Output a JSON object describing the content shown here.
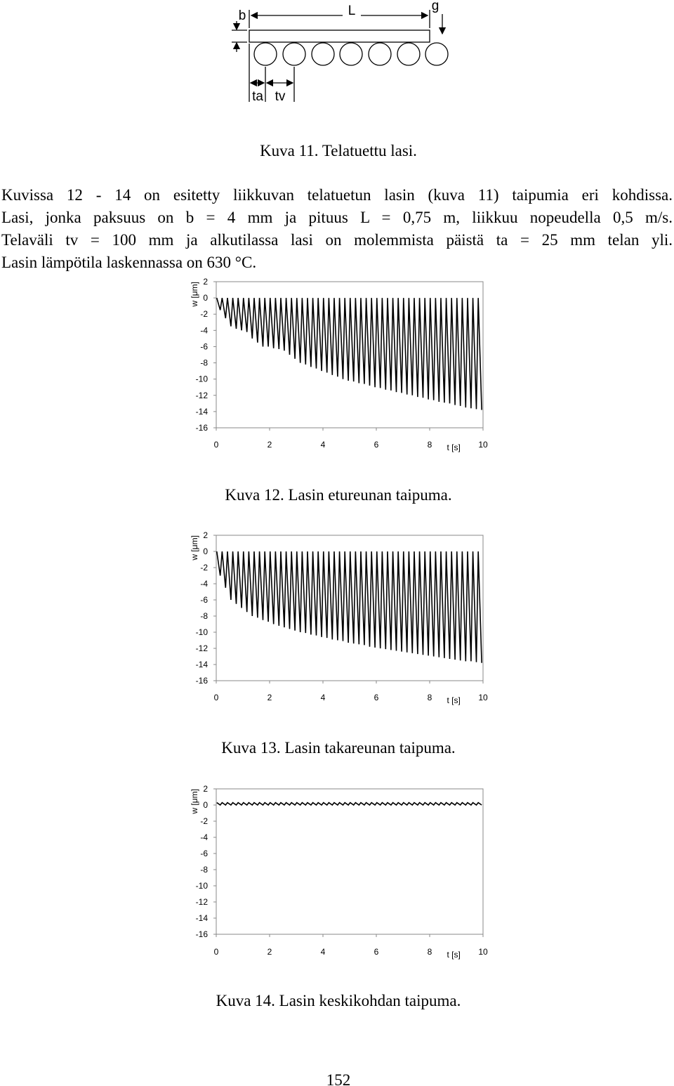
{
  "figure11": {
    "labels": {
      "b": "b",
      "L": "L",
      "g": "g",
      "ta": "ta",
      "tv": "tv"
    },
    "caption": "Kuva 11. Telatuettu lasi."
  },
  "paragraph": [
    "Kuvissa 12 - 14 on esitetty liikkuvan telatuetun lasin (kuva 11) taipumia eri kohdissa.",
    "Lasi, jonka paksuus on b = 4 mm ja pituus L = 0,75 m, liikkuu nopeudella 0,5 m/s.",
    "Telaväli tv = 100 mm ja alkutilassa lasi on molemmista päistä ta = 25 mm telan yli.",
    "Lasin lämpötila laskennassa on 630 °C."
  ],
  "chart_data": [
    {
      "type": "line",
      "caption": "Kuva 12. Lasin etureunan taipuma.",
      "ylabel": "w [μm]",
      "xlabel": "t [s]",
      "xlim": [
        0,
        10
      ],
      "xticks": [
        0,
        2,
        4,
        6,
        8,
        10
      ],
      "ylim": [
        -16,
        2
      ],
      "yticks": [
        2,
        0,
        -2,
        -4,
        -6,
        -8,
        -10,
        -12,
        -14,
        -16
      ],
      "grid": false,
      "x": [
        0.02,
        0.15,
        0.22,
        0.35,
        0.42,
        0.55,
        0.62,
        0.75,
        0.82,
        0.95,
        1.02,
        1.15,
        1.22,
        1.35,
        1.42,
        1.55,
        1.62,
        1.75,
        1.82,
        1.95,
        2.02,
        2.15,
        2.22,
        2.35,
        2.42,
        2.55,
        2.62,
        2.75,
        2.82,
        2.95,
        3.02,
        3.15,
        3.22,
        3.35,
        3.42,
        3.55,
        3.62,
        3.75,
        3.82,
        3.95,
        4.02,
        4.15,
        4.22,
        4.35,
        4.42,
        4.55,
        4.62,
        4.75,
        4.82,
        4.95,
        5.02,
        5.15,
        5.22,
        5.35,
        5.42,
        5.55,
        5.62,
        5.75,
        5.82,
        5.95,
        6.02,
        6.15,
        6.22,
        6.35,
        6.42,
        6.55,
        6.62,
        6.75,
        6.82,
        6.95,
        7.02,
        7.15,
        7.22,
        7.35,
        7.42,
        7.55,
        7.62,
        7.75,
        7.82,
        7.95,
        8.02,
        8.15,
        8.22,
        8.35,
        8.42,
        8.55,
        8.62,
        8.75,
        8.82,
        8.95,
        9.02,
        9.15,
        9.22,
        9.35,
        9.42,
        9.55,
        9.62,
        9.75,
        9.82,
        9.95
      ],
      "series": [
        {
          "color": "#000000",
          "values": [
            0,
            -1.5,
            0,
            -2.5,
            0,
            -3.5,
            0,
            -3.8,
            0,
            -4,
            0,
            -4.2,
            0,
            -5,
            0,
            -5.5,
            0,
            -6,
            0,
            -6,
            0,
            -6.2,
            0,
            -6.3,
            0,
            -6.5,
            0,
            -7,
            0,
            -7.5,
            0,
            -8,
            0,
            -8.2,
            0,
            -8.5,
            0,
            -8.7,
            0,
            -9,
            0,
            -9.2,
            0,
            -9.5,
            0,
            -9.7,
            0,
            -10,
            0,
            -10.2,
            0,
            -10.3,
            0,
            -10.5,
            0,
            -10.6,
            0,
            -10.8,
            0,
            -11,
            0,
            -11.1,
            0,
            -11.3,
            0,
            -11.4,
            0,
            -11.6,
            0,
            -11.7,
            0,
            -11.9,
            0,
            -12,
            0,
            -12.2,
            0,
            -12.3,
            0,
            -12.5,
            0,
            -12.6,
            0,
            -12.8,
            0,
            -12.9,
            0,
            -13,
            0,
            -13.2,
            0,
            -13.3,
            0,
            -13.5,
            0,
            -13.6,
            0,
            -13.7,
            0,
            -13.8
          ]
        }
      ]
    },
    {
      "type": "line",
      "caption": "Kuva 13. Lasin takareunan taipuma.",
      "ylabel": "w [μm]",
      "xlabel": "t [s]",
      "xlim": [
        0,
        10
      ],
      "xticks": [
        0,
        2,
        4,
        6,
        8,
        10
      ],
      "ylim": [
        -16,
        2
      ],
      "yticks": [
        2,
        0,
        -2,
        -4,
        -6,
        -8,
        -10,
        -12,
        -14,
        -16
      ],
      "grid": false,
      "x": [
        0.02,
        0.15,
        0.22,
        0.35,
        0.42,
        0.55,
        0.62,
        0.75,
        0.82,
        0.95,
        1.02,
        1.15,
        1.22,
        1.35,
        1.42,
        1.55,
        1.62,
        1.75,
        1.82,
        1.95,
        2.02,
        2.15,
        2.22,
        2.35,
        2.42,
        2.55,
        2.62,
        2.75,
        2.82,
        2.95,
        3.02,
        3.15,
        3.22,
        3.35,
        3.42,
        3.55,
        3.62,
        3.75,
        3.82,
        3.95,
        4.02,
        4.15,
        4.22,
        4.35,
        4.42,
        4.55,
        4.62,
        4.75,
        4.82,
        4.95,
        5.02,
        5.15,
        5.22,
        5.35,
        5.42,
        5.55,
        5.62,
        5.75,
        5.82,
        5.95,
        6.02,
        6.15,
        6.22,
        6.35,
        6.42,
        6.55,
        6.62,
        6.75,
        6.82,
        6.95,
        7.02,
        7.15,
        7.22,
        7.35,
        7.42,
        7.55,
        7.62,
        7.75,
        7.82,
        7.95,
        8.02,
        8.15,
        8.22,
        8.35,
        8.42,
        8.55,
        8.62,
        8.75,
        8.82,
        8.95,
        9.02,
        9.15,
        9.22,
        9.35,
        9.42,
        9.55,
        9.62,
        9.75,
        9.82,
        9.95
      ],
      "series": [
        {
          "color": "#000000",
          "values": [
            0,
            -3,
            0,
            -4.5,
            0,
            -6,
            0,
            -6.5,
            0,
            -7,
            0,
            -7.5,
            0,
            -8,
            0,
            -8.2,
            0,
            -8.5,
            0,
            -8.7,
            0,
            -9,
            0,
            -9.2,
            0,
            -9.4,
            0,
            -9.6,
            0,
            -9.8,
            0,
            -10,
            0,
            -10.1,
            0,
            -10.3,
            0,
            -10.4,
            0,
            -10.6,
            0,
            -10.7,
            0,
            -10.9,
            0,
            -11,
            0,
            -11.1,
            0,
            -11.3,
            0,
            -11.4,
            0,
            -11.5,
            0,
            -11.6,
            0,
            -11.8,
            0,
            -11.9,
            0,
            -12,
            0,
            -12.1,
            0,
            -12.2,
            0,
            -12.3,
            0,
            -12.4,
            0,
            -12.5,
            0,
            -12.6,
            0,
            -12.7,
            0,
            -12.8,
            0,
            -12.9,
            0,
            -13,
            0,
            -13.1,
            0,
            -13.2,
            0,
            -13.3,
            0,
            -13.4,
            0,
            -13.5,
            0,
            -13.6,
            0,
            -13.6,
            0,
            -13.7,
            0,
            -13.8
          ]
        }
      ]
    },
    {
      "type": "line",
      "caption": "Kuva 14. Lasin keskikohdan taipuma.",
      "ylabel": "w [μm]",
      "xlabel": "t [s]",
      "xlim": [
        0,
        10
      ],
      "xticks": [
        0,
        2,
        4,
        6,
        8,
        10
      ],
      "ylim": [
        -16,
        2
      ],
      "yticks": [
        2,
        0,
        -2,
        -4,
        -6,
        -8,
        -10,
        -12,
        -14,
        -16
      ],
      "grid": false,
      "x": [
        0.02,
        0.15,
        0.22,
        0.35,
        0.42,
        0.55,
        0.62,
        0.75,
        0.82,
        0.95,
        1.02,
        1.15,
        1.22,
        1.35,
        1.42,
        1.55,
        1.62,
        1.75,
        1.82,
        1.95,
        2.02,
        2.15,
        2.22,
        2.35,
        2.42,
        2.55,
        2.62,
        2.75,
        2.82,
        2.95,
        3.02,
        3.15,
        3.22,
        3.35,
        3.42,
        3.55,
        3.62,
        3.75,
        3.82,
        3.95,
        4.02,
        4.15,
        4.22,
        4.35,
        4.42,
        4.55,
        4.62,
        4.75,
        4.82,
        4.95,
        5.02,
        5.15,
        5.22,
        5.35,
        5.42,
        5.55,
        5.62,
        5.75,
        5.82,
        5.95,
        6.02,
        6.15,
        6.22,
        6.35,
        6.42,
        6.55,
        6.62,
        6.75,
        6.82,
        6.95,
        7.02,
        7.15,
        7.22,
        7.35,
        7.42,
        7.55,
        7.62,
        7.75,
        7.82,
        7.95,
        8.02,
        8.15,
        8.22,
        8.35,
        8.42,
        8.55,
        8.62,
        8.75,
        8.82,
        8.95,
        9.02,
        9.15,
        9.22,
        9.35,
        9.42,
        9.55,
        9.62,
        9.75,
        9.82,
        9.95
      ],
      "series": [
        {
          "color": "#000000",
          "values": [
            0.3,
            0,
            0.3,
            0,
            0.3,
            0,
            0.3,
            0,
            0.3,
            0,
            0.3,
            0,
            0.3,
            0,
            0.3,
            0,
            0.3,
            0,
            0.3,
            0,
            0.3,
            0,
            0.3,
            0,
            0.3,
            0,
            0.3,
            0,
            0.3,
            0,
            0.3,
            0,
            0.3,
            0,
            0.3,
            0,
            0.3,
            0,
            0.3,
            0,
            0.3,
            0,
            0.3,
            0,
            0.3,
            0,
            0.3,
            0,
            0.3,
            0,
            0.3,
            0,
            0.3,
            0,
            0.3,
            0,
            0.3,
            0,
            0.3,
            0,
            0.3,
            0,
            0.3,
            0,
            0.3,
            0,
            0.3,
            0,
            0.3,
            0,
            0.3,
            0,
            0.3,
            0,
            0.3,
            0,
            0.3,
            0,
            0.3,
            0,
            0.3,
            0,
            0.3,
            0,
            0.3,
            0,
            0.3,
            0,
            0.3,
            0,
            0.3,
            0,
            0.3,
            0,
            0.3,
            0,
            0.3,
            0,
            0.3,
            0
          ]
        }
      ]
    }
  ],
  "page_number": "152"
}
